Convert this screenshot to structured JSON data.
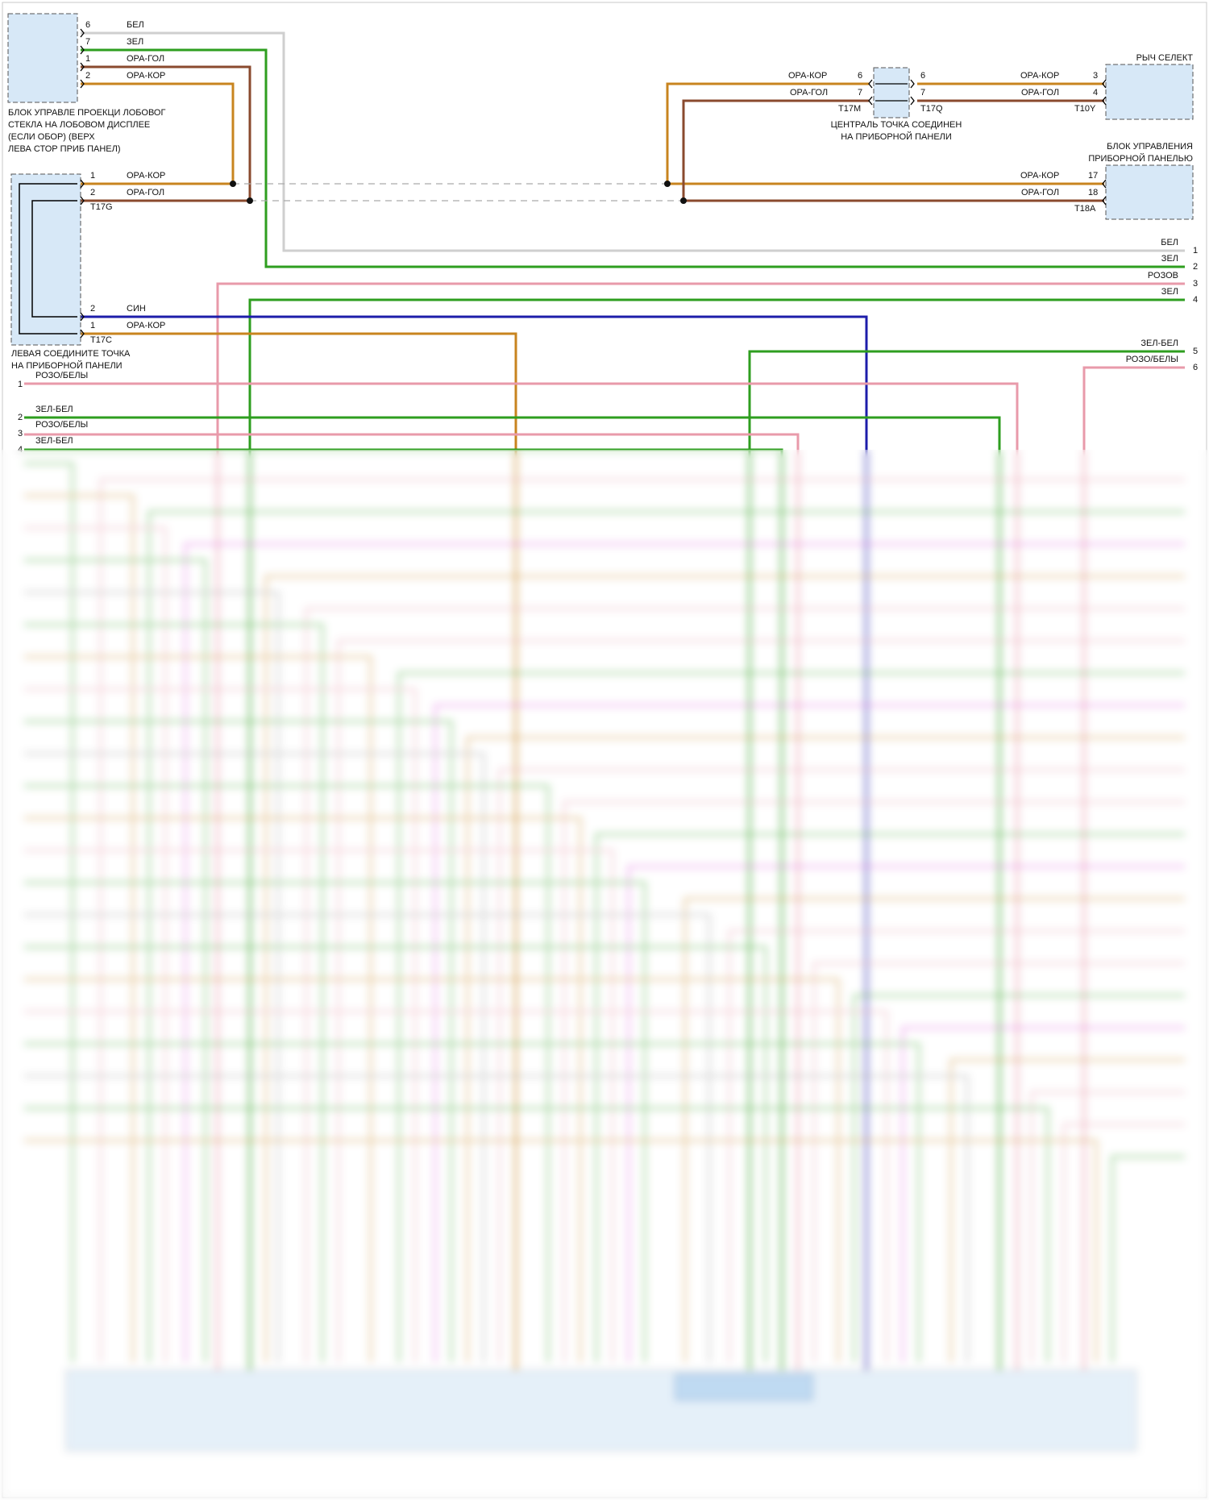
{
  "colors": {
    "white": "#cfcfcf",
    "green": "#2e9e1f",
    "orange": "#c8841f",
    "brown": "#8a4a2e",
    "pink": "#e89aaa",
    "blue": "#1d1daa",
    "magenta": "#d94ad9",
    "gray": "#999999",
    "box_fill": "#d7e8f7",
    "box_stroke": "#555555"
  },
  "hud": {
    "title_lines": [
      "БЛОК УПРАВЛЕ ПРОЕКЦИ ЛОБОВОГ",
      "СТЕКЛА НА ЛОБОВОМ ДИСПЛЕЕ",
      "(ЕСЛИ ОБОР) (ВЕРХ",
      "ЛЕВА СТОР ПРИБ ПАНЕЛ)"
    ],
    "pins": [
      {
        "pin": "6",
        "wire": "БЕЛ"
      },
      {
        "pin": "7",
        "wire": "ЗЕЛ"
      },
      {
        "pin": "1",
        "wire": "ОРА-ГОЛ"
      },
      {
        "pin": "2",
        "wire": "ОРА-КОР"
      }
    ]
  },
  "left_splice": {
    "title_lines": [
      "ЛЕВАЯ СОЕДИНИТЕ ТОЧКА",
      "НА ПРИБОРНОЙ ПАНЕЛИ"
    ],
    "upper": {
      "connector": "T17G",
      "pins": [
        {
          "pin": "1",
          "wire": "ОРА-КОР"
        },
        {
          "pin": "2",
          "wire": "ОРА-ГОЛ"
        }
      ]
    },
    "lower": {
      "connector": "T17C",
      "pins": [
        {
          "pin": "2",
          "wire": "СИН"
        },
        {
          "pin": "1",
          "wire": "ОРА-КОР"
        }
      ]
    }
  },
  "center_splice": {
    "title_lines": [
      "ЦЕНТРАЛЬ ТОЧКА СОЕДИНЕН",
      "НА ПРИБОРНОЙ ПАНЕЛИ"
    ],
    "left_connector": "T17M",
    "right_connector": "T17Q",
    "left_pins": [
      {
        "pin": "6",
        "wire": "ОРА-КОР"
      },
      {
        "pin": "7",
        "wire": "ОРА-ГОЛ"
      }
    ],
    "right_pins": [
      {
        "pin": "6"
      },
      {
        "pin": "7"
      }
    ]
  },
  "gear_selector": {
    "title": "РЫЧ СЕЛЕКТ",
    "connector": "T10Y",
    "pins": [
      {
        "pin": "3",
        "wire": "ОРА-КОР"
      },
      {
        "pin": "4",
        "wire": "ОРА-ГОЛ"
      }
    ]
  },
  "instrument_cluster": {
    "title_lines": [
      "БЛОК УПРАВЛЕНИЯ",
      "ПРИБОРНОЙ ПАНЕЛЬЮ"
    ],
    "connector": "T18A",
    "pins": [
      {
        "pin": "17",
        "wire": "ОРА-КОР"
      },
      {
        "pin": "18",
        "wire": "ОРА-ГОЛ"
      }
    ]
  },
  "right_continuations": [
    {
      "pin": "1",
      "wire": "БЕЛ"
    },
    {
      "pin": "2",
      "wire": "ЗЕЛ"
    },
    {
      "pin": "3",
      "wire": "РОЗОВ"
    },
    {
      "pin": "4",
      "wire": "ЗЕЛ"
    },
    {
      "pin": "5",
      "wire": "ЗЕЛ-БЕЛ"
    },
    {
      "pin": "6",
      "wire": "РОЗО/БЕЛЫ"
    }
  ],
  "left_continuations": [
    {
      "pin": "1",
      "wire": "РОЗО/БЕЛЫ"
    },
    {
      "pin": "2",
      "wire": "ЗЕЛ-БЕЛ"
    },
    {
      "pin": "3",
      "wire": "РОЗО/БЕЛЫ"
    },
    {
      "pin": "4",
      "wire": "ЗЕЛ-БЕЛ"
    }
  ]
}
